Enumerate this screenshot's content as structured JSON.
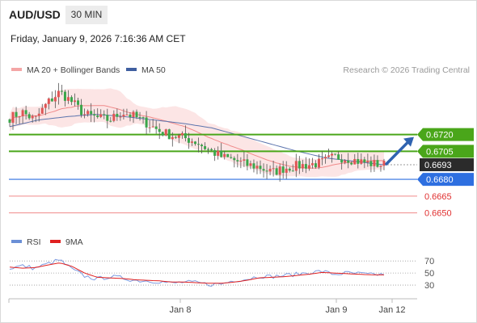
{
  "header": {
    "symbol": "AUD/USD",
    "timeframe": "30 MIN",
    "datetime": "Friday, January 9, 2026 7:16:36 AM CET"
  },
  "legend": {
    "items": [
      {
        "label": "MA 20 + Bollinger Bands",
        "color": "#f4a6a6"
      },
      {
        "label": "MA 50",
        "color": "#3f5fa0"
      }
    ],
    "credit": "Research © 2026 Trading Central"
  },
  "rsi_legend": {
    "items": [
      {
        "label": "RSI",
        "color": "#6b8fd6"
      },
      {
        "label": "9MA",
        "color": "#e02020"
      }
    ]
  },
  "colors": {
    "up_candle": "#e05555",
    "down_candle": "#3aa64a",
    "green_level": "#4aa61a",
    "blue_level": "#2e6fe0",
    "red_level": "#f08a8a",
    "current_price_bg": "#2b2b2b",
    "arrow": "#2f63b0"
  },
  "chart_data": [
    {
      "type": "candlestick",
      "title": "",
      "x_ticks": [
        "Jan 8",
        "Jan 9",
        "Jan 12"
      ],
      "y_range": [
        0.6644,
        0.6768
      ],
      "levels": [
        {
          "value": 0.672,
          "label": "0.6720",
          "kind": "resistance",
          "color": "#4aa61a"
        },
        {
          "value": 0.6705,
          "label": "0.6705",
          "kind": "resistance",
          "color": "#4aa61a"
        },
        {
          "value": 0.6693,
          "label": "0.6693",
          "kind": "current",
          "color": "#2b2b2b"
        },
        {
          "value": 0.668,
          "label": "0.6680",
          "kind": "pivot",
          "color": "#2e6fe0"
        },
        {
          "value": 0.6665,
          "label": "0.6665",
          "kind": "support",
          "color": "#f08a8a"
        },
        {
          "value": 0.665,
          "label": "0.6650",
          "kind": "support",
          "color": "#f08a8a"
        }
      ],
      "close_anchors": [
        0.6735,
        0.674,
        0.6733,
        0.6748,
        0.6758,
        0.6749,
        0.6738,
        0.6735,
        0.6733,
        0.674,
        0.6736,
        0.673,
        0.6723,
        0.6719,
        0.6717,
        0.6713,
        0.6706,
        0.67,
        0.6697,
        0.6693,
        0.6691,
        0.6686,
        0.669,
        0.6692,
        0.6693,
        0.6695,
        0.67,
        0.6699,
        0.6696,
        0.6694,
        0.6693
      ],
      "ma50_anchors": [
        0.6727,
        0.6733,
        0.6736,
        0.6738,
        0.6736,
        0.6733,
        0.673,
        0.6726,
        0.6719,
        0.6712,
        0.6705,
        0.6699,
        0.6696,
        0.6693
      ]
    },
    {
      "type": "line",
      "title": "",
      "series": [
        {
          "name": "RSI"
        },
        {
          "name": "9MA"
        }
      ],
      "y_ticks": [
        70,
        50,
        30
      ],
      "y_range": [
        10,
        85
      ],
      "rsi_anchors": [
        58,
        62,
        58,
        65,
        72,
        56,
        45,
        40,
        44,
        42,
        38,
        37,
        36,
        33,
        35,
        34,
        31,
        32,
        38,
        40,
        45,
        44,
        46,
        48,
        51,
        53,
        48,
        50,
        49,
        47,
        48
      ],
      "ma9_anchors": [
        60,
        58,
        59,
        63,
        67,
        61,
        50,
        43,
        42,
        41,
        39,
        38,
        37,
        35,
        35,
        34,
        33,
        33,
        35,
        38,
        42,
        43,
        44,
        46,
        48,
        51,
        50,
        49,
        48,
        47,
        47
      ]
    }
  ]
}
